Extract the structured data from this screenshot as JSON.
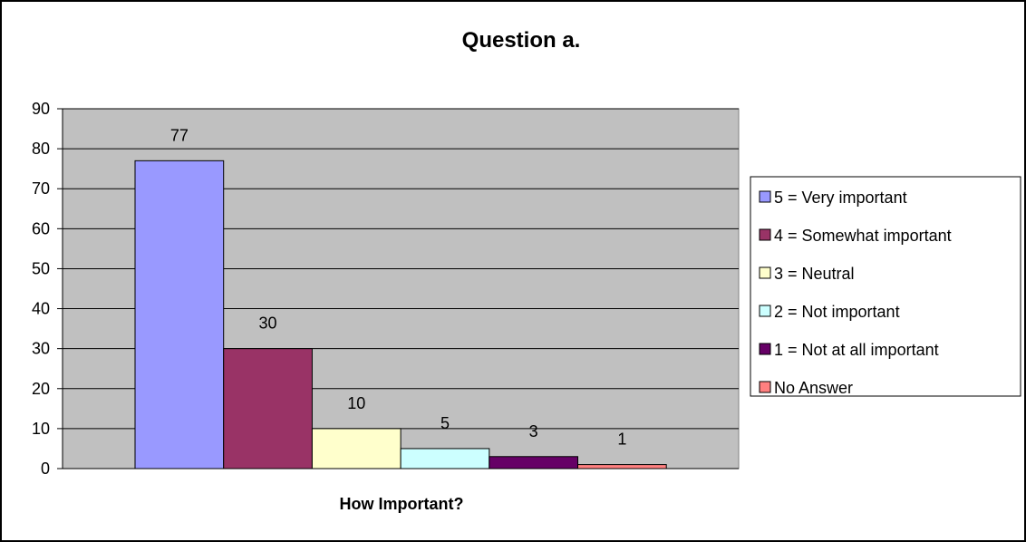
{
  "chart_data": {
    "type": "bar",
    "title": "Question a.",
    "xlabel": "How Important?",
    "ylabel": "",
    "ylim": [
      0,
      90
    ],
    "yticks": [
      0,
      10,
      20,
      30,
      40,
      50,
      60,
      70,
      80,
      90
    ],
    "grid": true,
    "legend_position": "right",
    "series": [
      {
        "name": "5 = Very important",
        "value": 77,
        "color": "#9999ff"
      },
      {
        "name": "4 = Somewhat important",
        "value": 30,
        "color": "#993366"
      },
      {
        "name": "3 = Neutral",
        "value": 10,
        "color": "#ffffcc"
      },
      {
        "name": "2 = Not important",
        "value": 5,
        "color": "#ccffff"
      },
      {
        "name": "1 = Not at all important",
        "value": 3,
        "color": "#660066"
      },
      {
        "name": "No Answer",
        "value": 1,
        "color": "#ff8080"
      }
    ],
    "plot_background": "#c0c0c0"
  }
}
